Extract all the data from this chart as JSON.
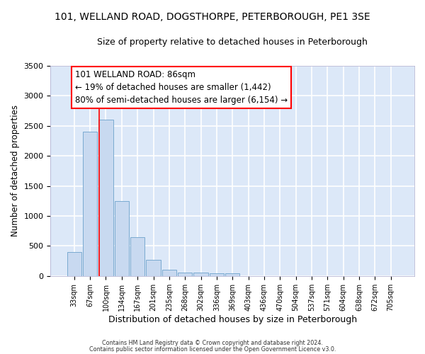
{
  "title1": "101, WELLAND ROAD, DOGSTHORPE, PETERBOROUGH, PE1 3SE",
  "title2": "Size of property relative to detached houses in Peterborough",
  "xlabel": "Distribution of detached houses by size in Peterborough",
  "ylabel": "Number of detached properties",
  "categories": [
    "33sqm",
    "67sqm",
    "100sqm",
    "134sqm",
    "167sqm",
    "201sqm",
    "235sqm",
    "268sqm",
    "302sqm",
    "336sqm",
    "369sqm",
    "403sqm",
    "436sqm",
    "470sqm",
    "504sqm",
    "537sqm",
    "571sqm",
    "604sqm",
    "638sqm",
    "672sqm",
    "705sqm"
  ],
  "values": [
    400,
    2400,
    2600,
    1250,
    650,
    270,
    100,
    60,
    55,
    40,
    50,
    0,
    0,
    0,
    0,
    0,
    0,
    0,
    0,
    0,
    0
  ],
  "bar_color": "#c8d9f0",
  "bar_edge_color": "#7aaad0",
  "ylim": [
    0,
    3500
  ],
  "yticks": [
    0,
    500,
    1000,
    1500,
    2000,
    2500,
    3000,
    3500
  ],
  "red_line_x": 1.58,
  "annotation_line1": "101 WELLAND ROAD: 86sqm",
  "annotation_line2": "← 19% of detached houses are smaller (1,442)",
  "annotation_line3": "80% of semi-detached houses are larger (6,154) →",
  "footer1": "Contains HM Land Registry data © Crown copyright and database right 2024.",
  "footer2": "Contains public sector information licensed under the Open Government Licence v3.0.",
  "bg_color": "#dce8f8",
  "plot_bg_color": "#dce8f8",
  "grid_color": "#ffffff",
  "title1_fontsize": 10,
  "title2_fontsize": 9,
  "xlabel_fontsize": 9,
  "ylabel_fontsize": 8.5,
  "tick_fontsize": 8,
  "xtick_fontsize": 7
}
